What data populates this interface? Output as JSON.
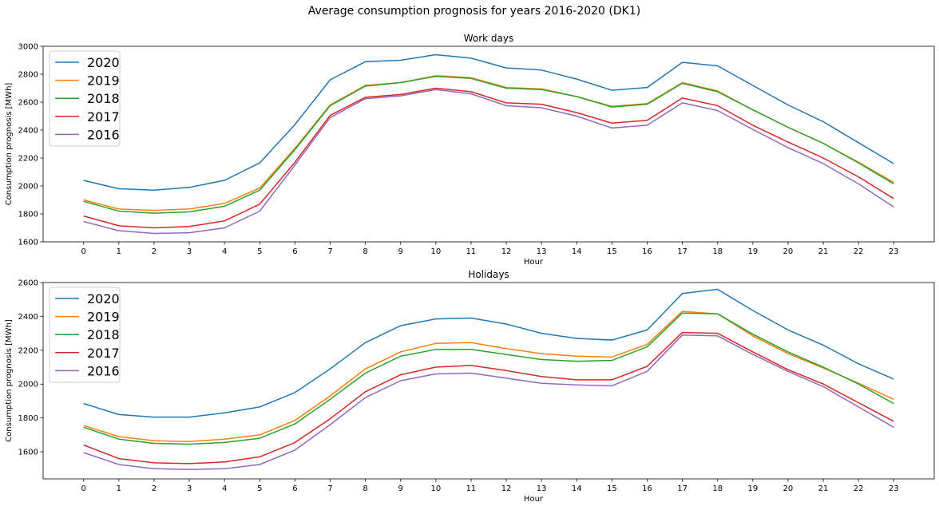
{
  "figure": {
    "title": "Average consumption prognosis for years 2016-2020 (DK1)"
  },
  "chart_data": [
    {
      "type": "line",
      "title": "Work days",
      "xlabel": "Hour",
      "ylabel": "Consumption prognosis [MWh]",
      "x": [
        0,
        1,
        2,
        3,
        4,
        5,
        6,
        7,
        8,
        9,
        10,
        11,
        12,
        13,
        14,
        15,
        16,
        17,
        18,
        19,
        20,
        21,
        22,
        23
      ],
      "xlim": [
        -1.15,
        24.15
      ],
      "ylim": [
        1600,
        3000
      ],
      "yticks": [
        1600,
        1800,
        2000,
        2200,
        2400,
        2600,
        2800,
        3000
      ],
      "grid": false,
      "legend": "top-left",
      "series": [
        {
          "name": "2020",
          "color": "#1f77b4",
          "values": [
            2040,
            1980,
            1970,
            1990,
            2040,
            2165,
            2440,
            2760,
            2890,
            2900,
            2940,
            2915,
            2845,
            2830,
            2765,
            2685,
            2705,
            2885,
            2860,
            2720,
            2580,
            2460,
            2310,
            2160
          ]
        },
        {
          "name": "2019",
          "color": "#ff7f0e",
          "values": [
            1900,
            1835,
            1825,
            1835,
            1875,
            1985,
            2270,
            2580,
            2720,
            2740,
            2790,
            2775,
            2705,
            2695,
            2640,
            2570,
            2590,
            2740,
            2680,
            2545,
            2420,
            2305,
            2170,
            2025
          ]
        },
        {
          "name": "2018",
          "color": "#2ca02c",
          "values": [
            1890,
            1820,
            1805,
            1815,
            1855,
            1970,
            2260,
            2575,
            2715,
            2740,
            2785,
            2770,
            2700,
            2690,
            2640,
            2565,
            2585,
            2735,
            2675,
            2545,
            2420,
            2305,
            2165,
            2015
          ]
        },
        {
          "name": "2017",
          "color": "#d62728",
          "values": [
            1785,
            1715,
            1700,
            1710,
            1750,
            1870,
            2170,
            2505,
            2635,
            2655,
            2700,
            2675,
            2595,
            2585,
            2525,
            2450,
            2470,
            2630,
            2575,
            2435,
            2315,
            2200,
            2065,
            1910
          ]
        },
        {
          "name": "2016",
          "color": "#9467bd",
          "values": [
            1745,
            1680,
            1660,
            1665,
            1700,
            1820,
            2150,
            2490,
            2625,
            2645,
            2690,
            2660,
            2575,
            2560,
            2500,
            2415,
            2435,
            2595,
            2540,
            2405,
            2275,
            2160,
            2015,
            1850
          ]
        }
      ]
    },
    {
      "type": "line",
      "title": "Holidays",
      "xlabel": "Hour",
      "ylabel": "Consumption prognosis [MWh]",
      "x": [
        0,
        1,
        2,
        3,
        4,
        5,
        6,
        7,
        8,
        9,
        10,
        11,
        12,
        13,
        14,
        15,
        16,
        17,
        18,
        19,
        20,
        21,
        22,
        23
      ],
      "xlim": [
        -1.15,
        24.15
      ],
      "ylim": [
        1440,
        2600
      ],
      "yticks": [
        1600,
        1800,
        2000,
        2200,
        2400,
        2600
      ],
      "grid": false,
      "legend": "top-left",
      "series": [
        {
          "name": "2020",
          "color": "#1f77b4",
          "values": [
            1885,
            1820,
            1805,
            1805,
            1830,
            1865,
            1950,
            2090,
            2245,
            2345,
            2385,
            2390,
            2355,
            2300,
            2270,
            2260,
            2320,
            2535,
            2560,
            2435,
            2320,
            2230,
            2120,
            2030
          ]
        },
        {
          "name": "2019",
          "color": "#ff7f0e",
          "values": [
            1755,
            1690,
            1665,
            1660,
            1675,
            1700,
            1785,
            1930,
            2090,
            2190,
            2240,
            2245,
            2210,
            2180,
            2165,
            2160,
            2235,
            2430,
            2415,
            2285,
            2180,
            2095,
            2005,
            1910
          ]
        },
        {
          "name": "2018",
          "color": "#2ca02c",
          "values": [
            1745,
            1675,
            1650,
            1645,
            1655,
            1680,
            1765,
            1910,
            2065,
            2165,
            2205,
            2205,
            2175,
            2145,
            2135,
            2140,
            2220,
            2420,
            2415,
            2295,
            2190,
            2100,
            2000,
            1885
          ]
        },
        {
          "name": "2017",
          "color": "#d62728",
          "values": [
            1640,
            1560,
            1535,
            1530,
            1540,
            1570,
            1655,
            1795,
            1955,
            2055,
            2100,
            2110,
            2080,
            2045,
            2025,
            2025,
            2105,
            2305,
            2300,
            2190,
            2085,
            2000,
            1890,
            1780
          ]
        },
        {
          "name": "2016",
          "color": "#9467bd",
          "values": [
            1595,
            1525,
            1500,
            1495,
            1500,
            1525,
            1610,
            1760,
            1920,
            2020,
            2060,
            2065,
            2035,
            2005,
            1995,
            1990,
            2075,
            2290,
            2285,
            2175,
            2075,
            1985,
            1865,
            1745
          ]
        }
      ]
    }
  ]
}
